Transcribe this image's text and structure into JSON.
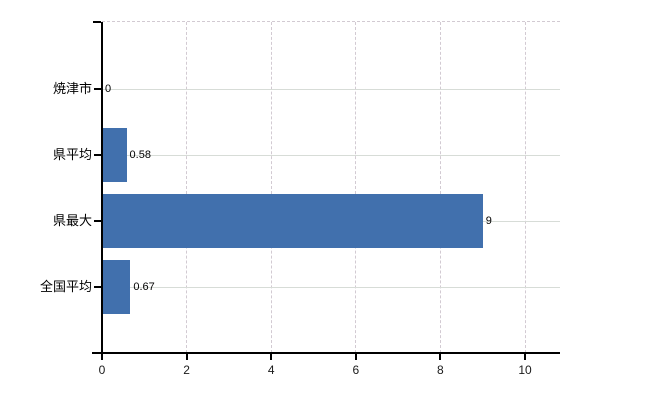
{
  "chart_data": {
    "type": "bar",
    "orientation": "horizontal",
    "title": "",
    "xlabel": "",
    "ylabel": "",
    "categories": [
      "焼津市",
      "県平均",
      "県最大",
      "全国平均"
    ],
    "values": [
      0,
      0.58,
      9,
      0.67
    ],
    "value_labels": [
      "0",
      "0.58",
      "9",
      "0.67"
    ],
    "xlim": [
      0,
      10
    ],
    "x_ticks": [
      "0",
      "2",
      "4",
      "6",
      "8",
      "10"
    ],
    "x_tick_values": [
      0,
      2,
      4,
      6,
      8,
      10
    ],
    "legend": "none",
    "grid": "dashed vertical gridlines at x ticks; solid horizontal gridline per category; dashed top plot border",
    "colors": {
      "bar": "#4170ad",
      "vertical_grid": "#d2cad2",
      "horizontal_grid": "#d7dcd7",
      "axis": "#000000",
      "label_text": "#000000"
    }
  }
}
